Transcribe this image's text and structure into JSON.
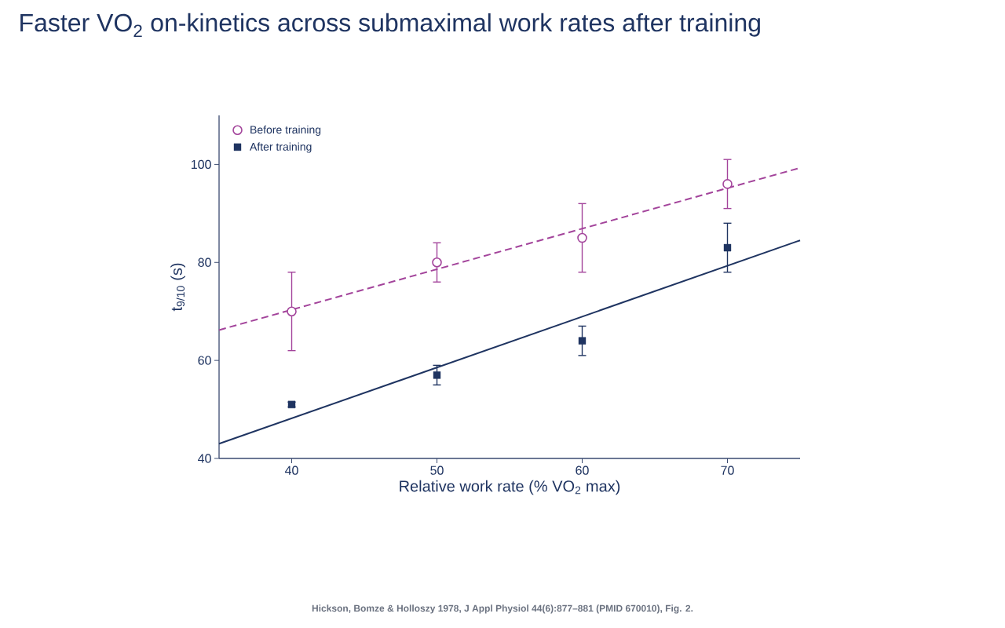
{
  "chart_data": {
    "type": "scatter",
    "title": "Faster VO$_{2}$ on-kinetics across submaximal work rates after training",
    "xlabel": "Relative work rate (% VO$_{2}$ max)",
    "ylabel": "t$_{9/10}$ (s)",
    "xlim": [
      35,
      75
    ],
    "xticks": [
      40,
      50,
      60,
      70
    ],
    "ylim": [
      40,
      110
    ],
    "yticks": [
      40,
      60,
      80,
      100
    ],
    "legend": "top left",
    "series": [
      {
        "name": "Before training",
        "type": "scatter",
        "marker": "circle",
        "color": "#a3449b",
        "x": [
          40,
          50,
          60,
          70
        ],
        "values": [
          70,
          80,
          85,
          96
        ],
        "errors": [
          8,
          4,
          7,
          5
        ]
      },
      {
        "name": "After training",
        "type": "scatter",
        "marker": "square",
        "color": "#1f3461",
        "x": [
          40,
          50,
          60,
          70
        ],
        "values": [
          51,
          57,
          64,
          83
        ],
        "errors": [
          0.5,
          2,
          3,
          5
        ]
      },
      {
        "type": "line",
        "line_style": "dashed",
        "color": "#a3449b",
        "x": [
          35,
          75
        ],
        "values": [
          66.2,
          99.3
        ]
      },
      {
        "type": "line",
        "line_style": "solid",
        "color": "#1f3461",
        "x": [
          35,
          75
        ],
        "values": [
          43.0,
          84.5
        ]
      }
    ],
    "annotations": [
      "Hickson, Bomze & Holloszy 1978, J Appl Physiol 44(6):877–881 (PMID 670010), Fig. 2."
    ]
  }
}
